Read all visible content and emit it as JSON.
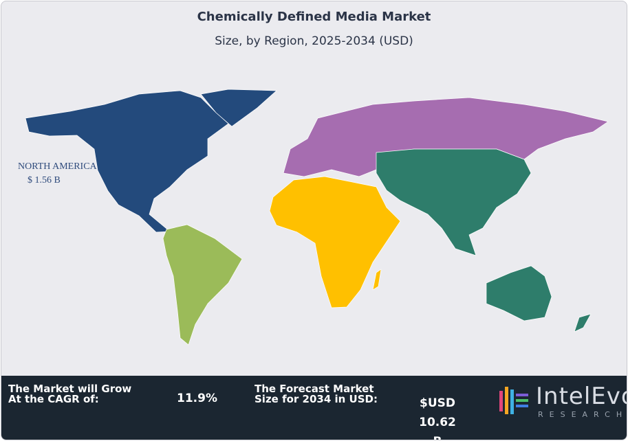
{
  "header": {
    "title": "Chemically Defined Media Market",
    "subtitle": "Size, by Region, 2025-2034 (USD)"
  },
  "map": {
    "labels": [
      {
        "name": "NORTH AMERICA",
        "value": "$ 1.56 B"
      }
    ]
  },
  "footer": {
    "cagr_label": [
      "The Market will Grow",
      "At the CAGR of:"
    ],
    "cagr_value": "11.9%",
    "forecast_label": [
      "The Forecast Market",
      "Size for 2034 in USD:"
    ],
    "forecast_value": [
      "$USD 10.62",
      "B"
    ]
  },
  "logo": {
    "name": "IntelEvo",
    "tagline": "RESEARCH"
  }
}
